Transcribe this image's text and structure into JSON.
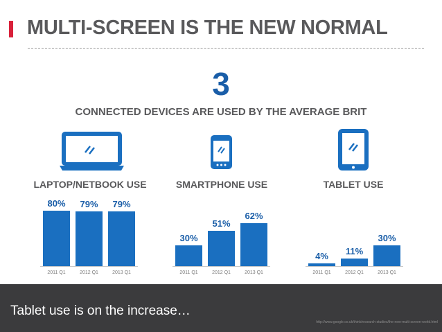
{
  "header": {
    "title": "MULTI-SCREEN IS THE NEW NORMAL",
    "accent_color": "#d9213a"
  },
  "headline": {
    "number": "3",
    "text": "CONNECTED DEVICES ARE USED BY THE AVERAGE BRIT"
  },
  "devices": [
    {
      "label": "LAPTOP/NETBOOK USE",
      "icon": "laptop-icon"
    },
    {
      "label": "SMARTPHONE USE",
      "icon": "smartphone-icon"
    },
    {
      "label": "TABLET USE",
      "icon": "tablet-icon"
    }
  ],
  "chart_data": [
    {
      "type": "bar",
      "title": "LAPTOP/NETBOOK USE",
      "categories": [
        "2011 Q1",
        "2012 Q1",
        "2013 Q1"
      ],
      "values": [
        80,
        79,
        79
      ],
      "value_labels": [
        "80%",
        "79%",
        "79%"
      ],
      "ylim": [
        0,
        100
      ],
      "color": "#1a6fc0"
    },
    {
      "type": "bar",
      "title": "SMARTPHONE USE",
      "categories": [
        "2011 Q1",
        "2012 Q1",
        "2013 Q1"
      ],
      "values": [
        30,
        51,
        62
      ],
      "value_labels": [
        "30%",
        "51%",
        "62%"
      ],
      "ylim": [
        0,
        100
      ],
      "color": "#1a6fc0"
    },
    {
      "type": "bar",
      "title": "TABLET USE",
      "categories": [
        "2011 Q1",
        "2012 Q1",
        "2013 Q1"
      ],
      "values": [
        4,
        11,
        30
      ],
      "value_labels": [
        "4%",
        "11%",
        "30%"
      ],
      "ylim": [
        0,
        100
      ],
      "color": "#1a6fc0"
    }
  ],
  "footer": {
    "caption": "Tablet use is on the increase…",
    "source": "http://www.google.co.uk/think/research-studies/the-new-multi-screen-world.html"
  }
}
